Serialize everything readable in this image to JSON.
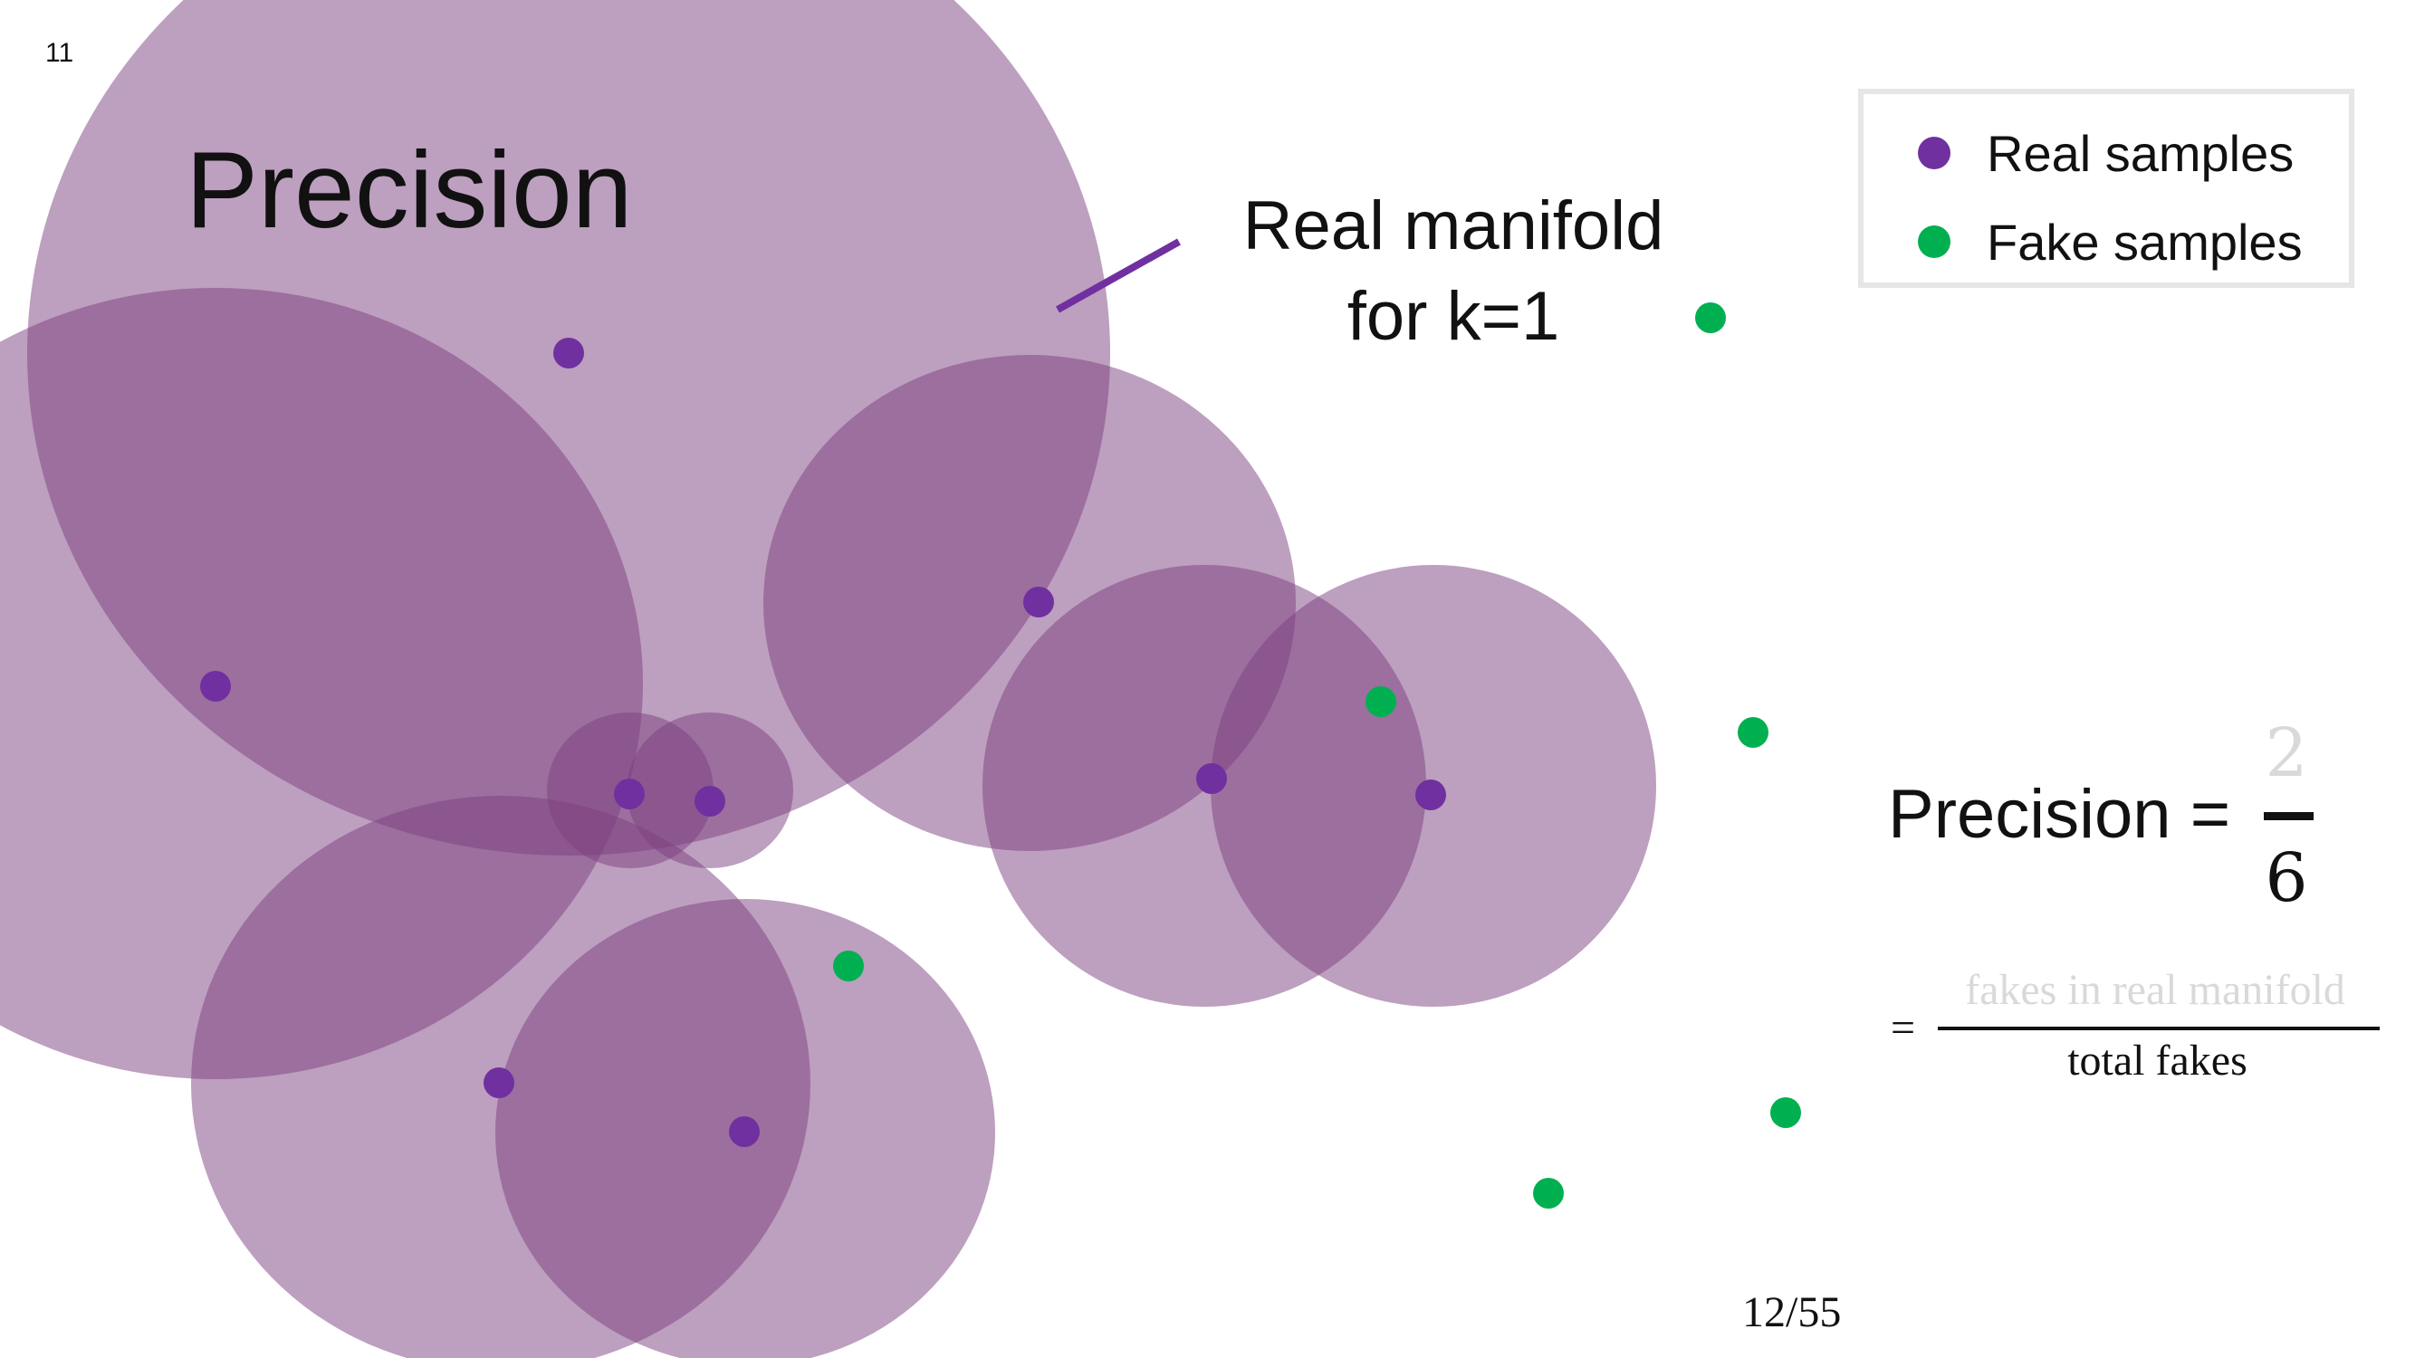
{
  "slide": {
    "number": "11",
    "title": "Precision",
    "page_indicator": "12/55"
  },
  "colors": {
    "real": "#7030A0",
    "fake": "#00B050",
    "manifold_fill": "#7B3F7F"
  },
  "manifold_label": {
    "line1": "Real manifold",
    "line2": "for k=1"
  },
  "legend": {
    "real_label": "Real samples",
    "fake_label": "Fake samples"
  },
  "formula": {
    "lhs": "Precision =",
    "numerator": "2",
    "denominator": "6",
    "definition_equals": "=",
    "definition_numerator": "fakes in real manifold",
    "definition_denominator": "total fakes"
  }
}
